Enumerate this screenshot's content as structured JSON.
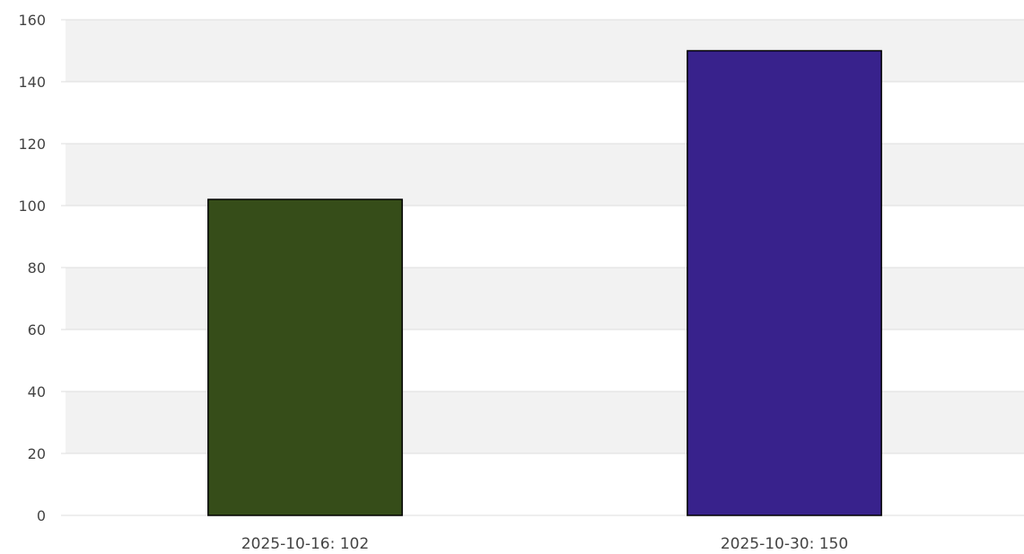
{
  "chart_data": {
    "type": "bar",
    "title": "",
    "xlabel": "",
    "ylabel": "",
    "ylim": [
      0,
      160
    ],
    "yticks": [
      0,
      20,
      40,
      60,
      80,
      100,
      120,
      140,
      160
    ],
    "grid": "horizontal, alternating bands",
    "legend": "none",
    "categories": [
      "2025-10-16",
      "2025-10-30"
    ],
    "category_labels": [
      "2025-10-16: 102",
      "2025-10-30: 150"
    ],
    "values": [
      102,
      150
    ],
    "colors": [
      "#364d19",
      "#38228c"
    ],
    "band_color": "#f2f2f2",
    "grid_color": "#dddddd",
    "bar_edge_color": "#000000"
  }
}
